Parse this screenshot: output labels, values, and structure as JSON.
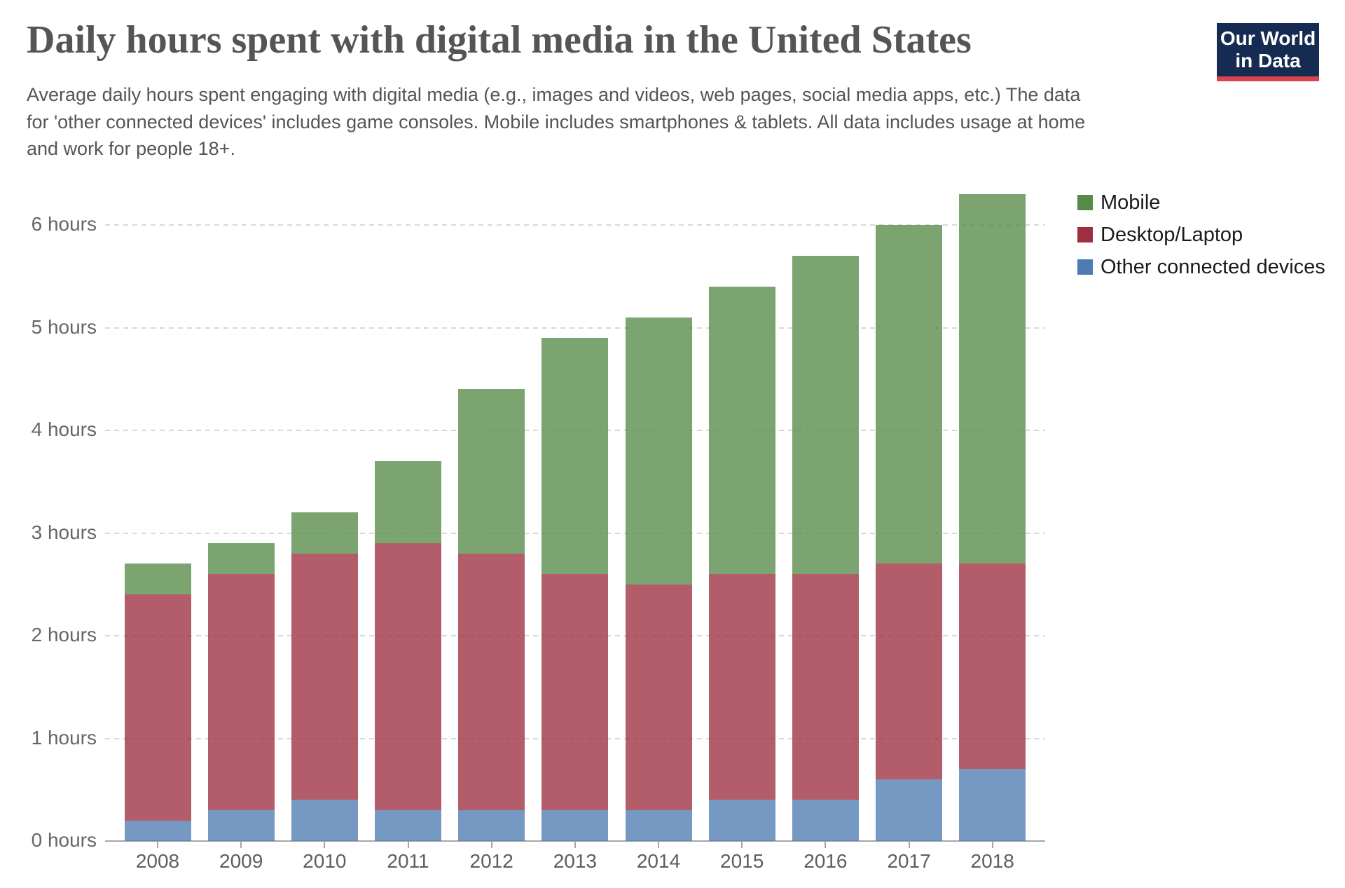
{
  "header": {
    "title": "Daily hours spent with digital media in the United States",
    "subtitle": "Average daily hours spent engaging with digital media (e.g., images and videos, web pages, social media apps, etc.) The data for 'other connected devices' includes game consoles. Mobile includes smartphones & tablets. All data includes usage at home and work for people 18+."
  },
  "logo": {
    "line1": "Our World",
    "line2": "in Data",
    "bg_color": "#162b52",
    "stripe_color": "#d8454e"
  },
  "chart_data": {
    "type": "bar",
    "stacked": true,
    "title": "Daily hours spent with digital media in the United States",
    "categories": [
      "2008",
      "2009",
      "2010",
      "2011",
      "2012",
      "2013",
      "2014",
      "2015",
      "2016",
      "2017",
      "2018"
    ],
    "series": [
      {
        "name": "Mobile",
        "color": "#568a49",
        "values": [
          0.3,
          0.3,
          0.4,
          0.8,
          1.6,
          2.3,
          2.6,
          2.8,
          3.1,
          3.3,
          3.6
        ]
      },
      {
        "name": "Desktop/Laptop",
        "color": "#9e2f41",
        "values": [
          2.2,
          2.3,
          2.4,
          2.6,
          2.5,
          2.3,
          2.2,
          2.2,
          2.2,
          2.1,
          2.0
        ]
      },
      {
        "name": "Other connected devices",
        "color": "#4e7cb2",
        "values": [
          0.2,
          0.3,
          0.4,
          0.3,
          0.3,
          0.3,
          0.3,
          0.4,
          0.4,
          0.6,
          0.7
        ]
      }
    ],
    "totals": [
      2.7,
      2.9,
      3.2,
      3.7,
      4.4,
      4.9,
      5.1,
      5.4,
      5.7,
      6.0,
      6.3
    ],
    "yticks": [
      0,
      1,
      2,
      3,
      4,
      5,
      6
    ],
    "ytick_labels": [
      "0 hours",
      "1 hours",
      "2 hours",
      "3 hours",
      "4 hours",
      "5 hours",
      "6 hours"
    ],
    "ylim": [
      0,
      6.5
    ],
    "xlabel": "",
    "ylabel": "",
    "grid": "horizontal-dashed",
    "legend_position": "right",
    "stack_order_bottom_to_top": [
      "Other connected devices",
      "Desktop/Laptop",
      "Mobile"
    ],
    "bar_opacity": 0.78
  }
}
